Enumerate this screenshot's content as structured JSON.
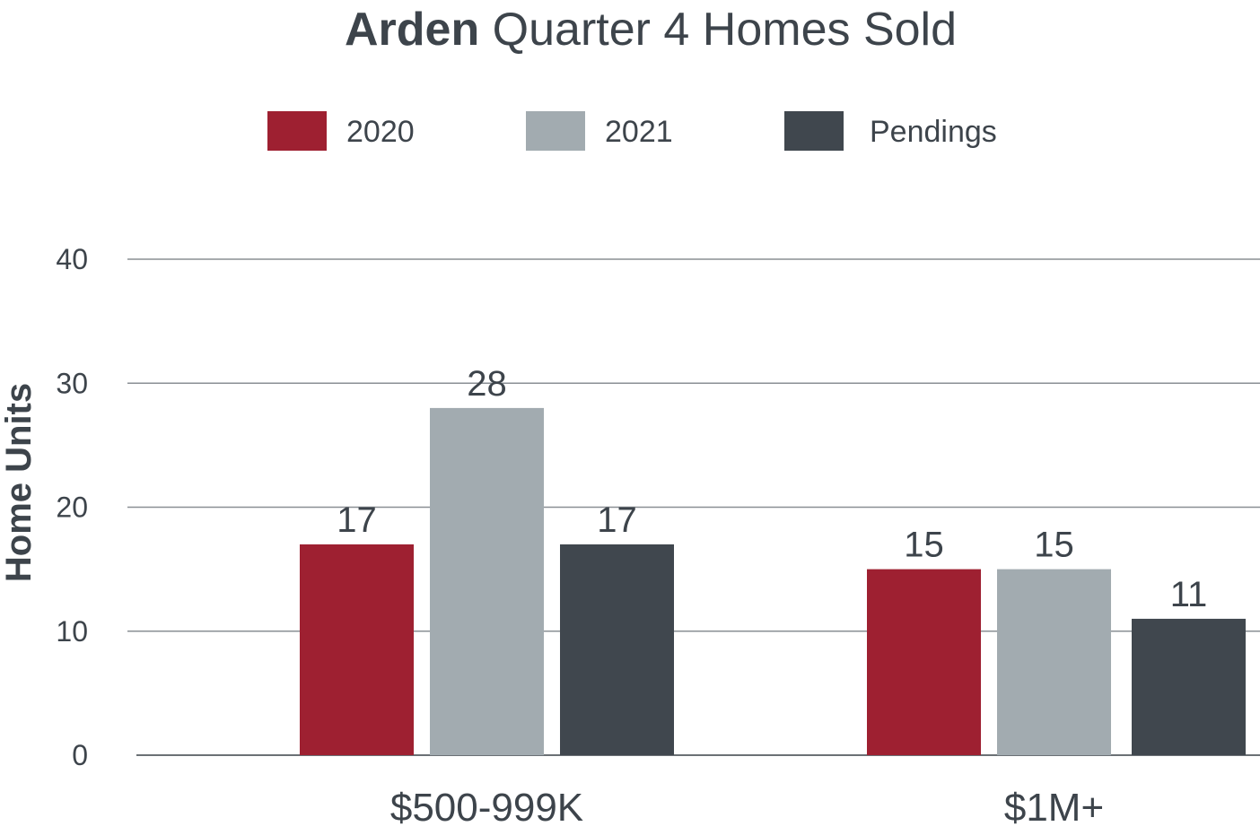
{
  "chart_data": {
    "type": "bar",
    "title_bold": "Arden",
    "title_rest": " Quarter 4 Homes Sold",
    "xlabel": "",
    "ylabel": "Home Units",
    "ylim": [
      0,
      40
    ],
    "yticks": [
      0,
      10,
      20,
      30,
      40
    ],
    "grid": true,
    "legend_position": "top-center",
    "categories": [
      "$500-999K",
      "$1M+"
    ],
    "series": [
      {
        "name": "2020",
        "color": "#9e2031",
        "values": [
          17,
          15
        ]
      },
      {
        "name": "2021",
        "color": "#a2abb0",
        "values": [
          28,
          15
        ]
      },
      {
        "name": "Pendings",
        "color": "#40474e",
        "values": [
          17,
          11
        ]
      }
    ]
  }
}
